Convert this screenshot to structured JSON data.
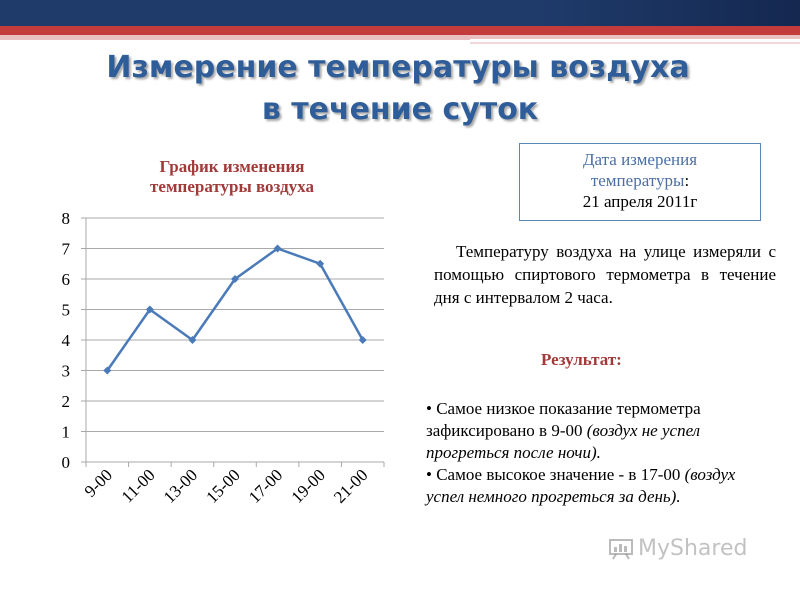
{
  "title": {
    "line1": "Измерение температуры воздуха",
    "line2": "в течение суток"
  },
  "chart_data": {
    "type": "line",
    "title": "График изменения температуры воздуха",
    "categories": [
      "9-00",
      "11-00",
      "13-00",
      "15-00",
      "17-00",
      "19-00",
      "21-00"
    ],
    "series": [
      {
        "values": [
          3,
          5,
          4,
          6,
          7,
          6.5,
          4
        ]
      }
    ],
    "xlabel": "",
    "ylabel": "",
    "ylim": [
      0,
      8
    ],
    "yticks": [
      "0",
      "1",
      "2",
      "3",
      "4",
      "5",
      "6",
      "7",
      "8"
    ],
    "grid": true,
    "line_color": "#4a7ab8",
    "grid_color": "#a9a9a9"
  },
  "date_box": {
    "label_line1": "Дата измерения",
    "label_line2": "температуры",
    "label_colon": ":",
    "value": "21 апреля 2011г"
  },
  "description": "Температуру воздуха на улице измеряли с помощью спиртового термометра в течение дня с интервалом 2 часа.",
  "result": {
    "heading": "Результат:",
    "items": [
      {
        "bullet": "•",
        "text": "Самое низкое показание термометра зафиксировано в 9-00",
        "note": "(воздух не успел прогреться после ночи)."
      },
      {
        "bullet": "•",
        "text": "Самое высокое значение - в 17-00",
        "note": "(воздух успел немного прогреться за день)."
      }
    ]
  },
  "watermark": {
    "text": "MyShared",
    "icon": "presentation-board-icon"
  },
  "colors": {
    "navy_band": "#1f3b6a",
    "red_band": "#c33b3b",
    "title": "#2f5d9a",
    "accent_red": "#a23a3a",
    "date_label": "#4a6fa5",
    "box_border": "#5b86b8"
  }
}
